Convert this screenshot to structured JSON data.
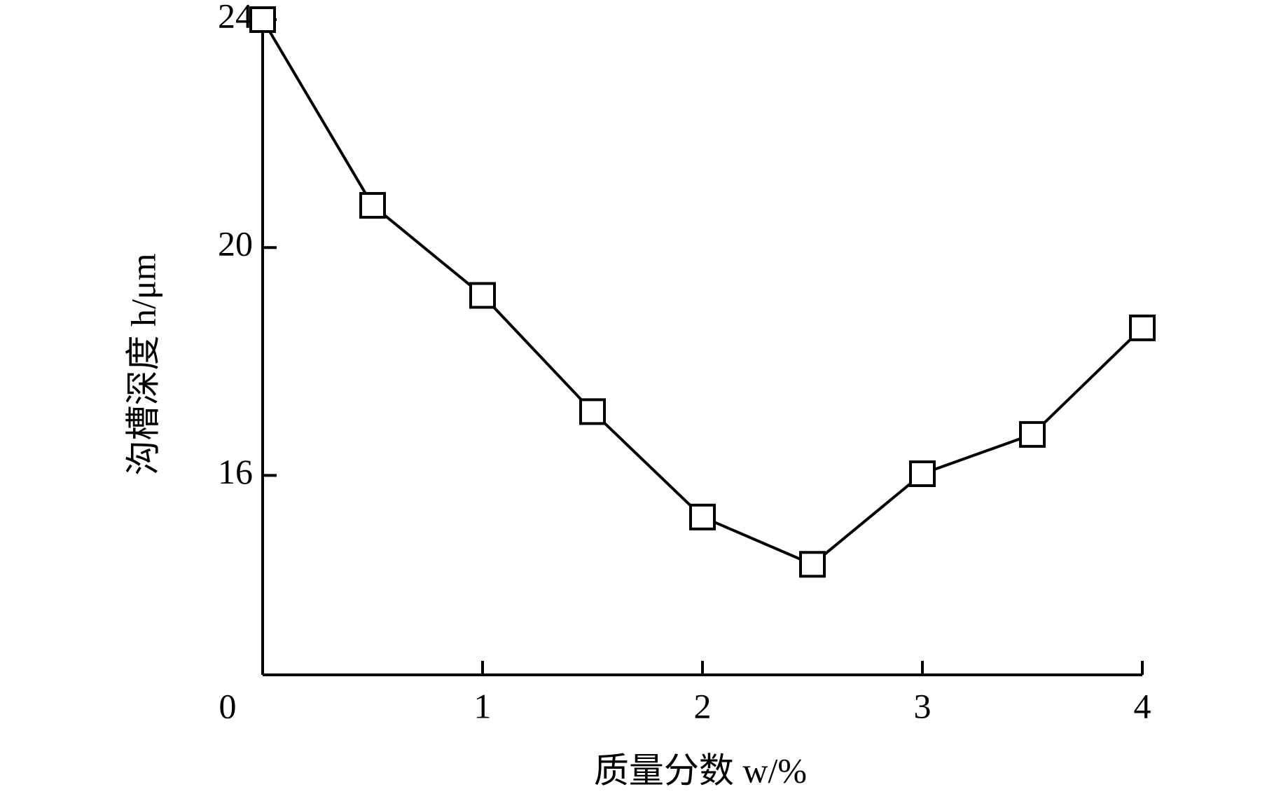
{
  "chart_data": {
    "type": "line",
    "x_label": "质量分数 w/%",
    "y_label": "沟槽深度 h/μm",
    "x": [
      0,
      0.5,
      1,
      1.5,
      2,
      2.5,
      3,
      3.5,
      4
    ],
    "series": [
      {
        "color": "#000000",
        "values": [
          24,
          20.74,
          19.16,
          17.12,
          15.27,
          14.44,
          16.03,
          16.72,
          18.59
        ]
      }
    ],
    "xlim": [
      0,
      4
    ],
    "xticks": [
      0,
      1,
      2,
      3,
      4
    ],
    "ylim": [
      12.5,
      24
    ],
    "yticks": [
      16,
      20,
      24
    ],
    "grid": false
  }
}
